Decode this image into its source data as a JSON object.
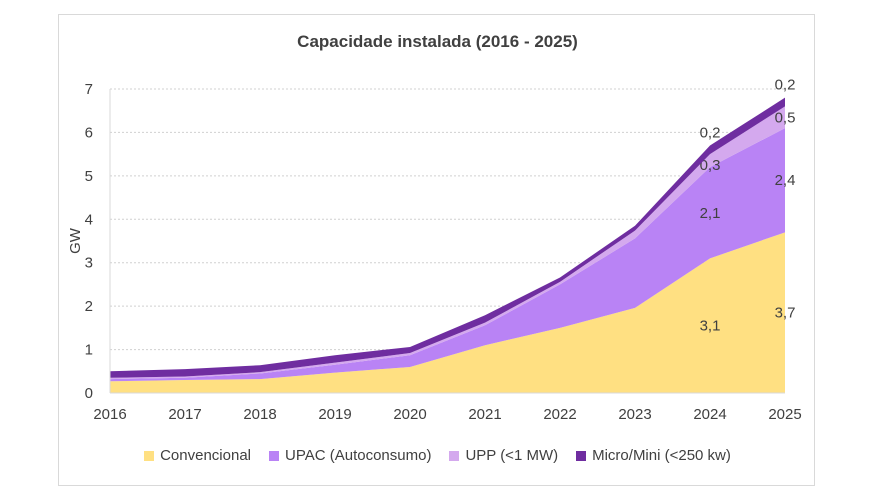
{
  "chart_data": {
    "type": "area",
    "stacked": true,
    "title": "Capacidade instalada (2016 - 2025)",
    "xlabel": "",
    "ylabel": "GW",
    "x": [
      "2016",
      "2017",
      "2018",
      "2019",
      "2020",
      "2021",
      "2022",
      "2023",
      "2024",
      "2025"
    ],
    "ylim": [
      0,
      7
    ],
    "yticks": [
      "0",
      "1",
      "2",
      "3",
      "4",
      "5",
      "6",
      "7"
    ],
    "grid": true,
    "legend": "bottom",
    "series": [
      {
        "name": "Convencional",
        "color": "#ffe082",
        "values": [
          0.27,
          0.3,
          0.32,
          0.47,
          0.6,
          1.1,
          1.5,
          1.96,
          3.1,
          3.7
        ],
        "labels": {
          "2024": "3,1",
          "2025": "3,7"
        }
      },
      {
        "name": "UPAC (Autoconsumo)",
        "color": "#b983f5",
        "values": [
          0.05,
          0.05,
          0.13,
          0.18,
          0.27,
          0.46,
          1.0,
          1.6,
          2.1,
          2.4
        ],
        "labels": {
          "2024": "2,1",
          "2025": "2,4"
        }
      },
      {
        "name": "UPP (<1 MW)",
        "color": "#d4a9ee",
        "values": [
          0.03,
          0.03,
          0.03,
          0.05,
          0.05,
          0.06,
          0.06,
          0.18,
          0.3,
          0.5
        ],
        "labels": {
          "2024": "0,3",
          "2025": "0,5"
        }
      },
      {
        "name": "Micro/Mini (<250 kw)",
        "color": "#6f2da0",
        "values": [
          0.15,
          0.17,
          0.16,
          0.17,
          0.14,
          0.17,
          0.1,
          0.11,
          0.2,
          0.2
        ],
        "labels": {
          "2024": "0,2",
          "2025": "0,2"
        }
      }
    ]
  }
}
